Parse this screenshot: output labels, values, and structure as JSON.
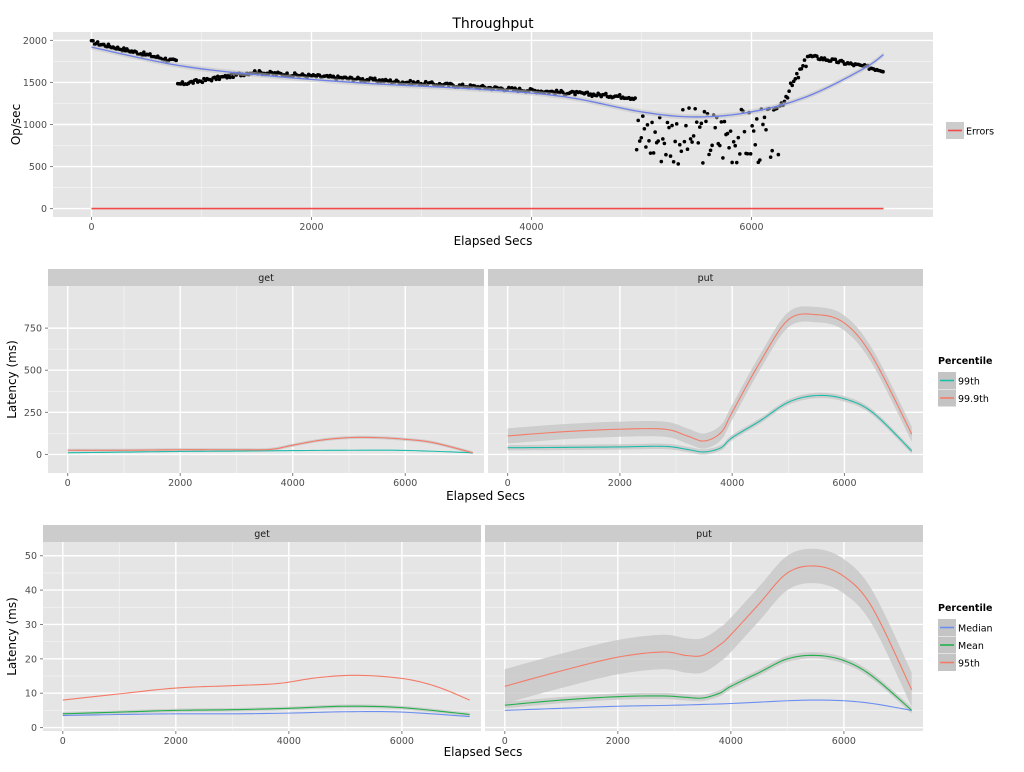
{
  "chart_data": [
    {
      "type": "scatter",
      "title": "Throughput",
      "xlabel": "Elapsed Secs",
      "ylabel": "Op/sec",
      "xlim": [
        -350,
        7650
      ],
      "ylim": [
        -100,
        2100
      ],
      "x_ticks": [
        0,
        2000,
        4000,
        6000
      ],
      "y_ticks": [
        0,
        500,
        1000,
        1500,
        2000
      ],
      "grid": true,
      "legend": {
        "position": "right",
        "entries": [
          "Errors"
        ]
      },
      "smooth": [
        [
          0,
          1920
        ],
        [
          800,
          1700
        ],
        [
          1600,
          1580
        ],
        [
          2500,
          1490
        ],
        [
          3500,
          1420
        ],
        [
          4300,
          1330
        ],
        [
          5000,
          1150
        ],
        [
          5500,
          1090
        ],
        [
          6000,
          1150
        ],
        [
          6500,
          1330
        ],
        [
          7000,
          1650
        ],
        [
          7200,
          1830
        ]
      ],
      "errors": [
        [
          0,
          0
        ],
        [
          7200,
          0
        ]
      ]
    },
    {
      "type": "line",
      "xlabel": "Elapsed Secs",
      "ylabel": "Latency (ms)",
      "xlim": [
        -350,
        7400
      ],
      "ylim": [
        -110,
        1000
      ],
      "x_ticks": [
        0,
        2000,
        4000,
        6000
      ],
      "y_ticks": [
        0,
        250,
        500,
        750
      ],
      "grid": true,
      "legend": {
        "title": "Percentile",
        "position": "right",
        "entries": [
          "99th",
          "99.9th"
        ]
      },
      "panels": [
        {
          "name": "get",
          "series": [
            {
              "name": "99th",
              "x": [
                0,
                1000,
                2000,
                3000,
                4000,
                5000,
                6000,
                7200
              ],
              "values": [
                10,
                14,
                18,
                20,
                23,
                25,
                24,
                10
              ]
            },
            {
              "name": "99.9th",
              "x": [
                0,
                1000,
                2000,
                3000,
                3600,
                4000,
                4500,
                5000,
                5500,
                6000,
                6500,
                7200
              ],
              "values": [
                25,
                25,
                28,
                28,
                30,
                55,
                85,
                100,
                100,
                90,
                70,
                10
              ]
            }
          ]
        },
        {
          "name": "put",
          "series": [
            {
              "name": "99th",
              "x": [
                0,
                1000,
                2000,
                2800,
                3200,
                3500,
                3800,
                4000,
                4500,
                5000,
                5500,
                6000,
                6500,
                7200
              ],
              "values": [
                40,
                42,
                45,
                48,
                30,
                15,
                40,
                100,
                200,
                310,
                350,
                330,
                250,
                20
              ]
            },
            {
              "name": "99.9th",
              "x": [
                0,
                1000,
                2000,
                2800,
                3200,
                3500,
                3800,
                4000,
                4500,
                5000,
                5500,
                6000,
                6500,
                7200
              ],
              "values": [
                110,
                135,
                150,
                150,
                110,
                80,
                130,
                250,
                550,
                800,
                830,
                780,
                580,
                120
              ]
            }
          ]
        }
      ]
    },
    {
      "type": "line",
      "xlabel": "Elapsed Secs",
      "ylabel": "Latency (ms)",
      "xlim": [
        -350,
        7400
      ],
      "ylim": [
        -1,
        54
      ],
      "x_ticks": [
        0,
        2000,
        4000,
        6000
      ],
      "y_ticks": [
        0,
        10,
        20,
        30,
        40,
        50
      ],
      "grid": true,
      "legend": {
        "title": "Percentile",
        "position": "right",
        "entries": [
          "Median",
          "Mean",
          "95th"
        ]
      },
      "panels": [
        {
          "name": "get",
          "series": [
            {
              "name": "Median",
              "x": [
                0,
                1000,
                2000,
                3000,
                4000,
                5000,
                6000,
                7200
              ],
              "values": [
                3.5,
                3.8,
                4,
                4,
                4.2,
                4.6,
                4.5,
                3.2
              ]
            },
            {
              "name": "Mean",
              "x": [
                0,
                1000,
                2000,
                3000,
                4000,
                5000,
                6000,
                7200
              ],
              "values": [
                4,
                4.5,
                5,
                5.2,
                5.6,
                6.2,
                5.8,
                3.8
              ]
            },
            {
              "name": "95th",
              "x": [
                0,
                1000,
                2000,
                3000,
                3800,
                4500,
                5200,
                6000,
                6600,
                7200
              ],
              "values": [
                8,
                9.8,
                11.5,
                12.2,
                12.8,
                14.5,
                15.2,
                14.3,
                12,
                8
              ]
            }
          ]
        },
        {
          "name": "put",
          "series": [
            {
              "name": "Median",
              "x": [
                0,
                1000,
                2000,
                3000,
                4000,
                5000,
                5500,
                6000,
                6500,
                7200
              ],
              "values": [
                5,
                5.6,
                6.2,
                6.5,
                7,
                7.8,
                8,
                7.8,
                7,
                5
              ]
            },
            {
              "name": "Mean",
              "x": [
                0,
                1000,
                2000,
                2800,
                3200,
                3500,
                3800,
                4000,
                4500,
                5000,
                5500,
                6000,
                6500,
                7200
              ],
              "values": [
                6.5,
                8,
                9,
                9.2,
                8.8,
                8.6,
                10,
                12,
                16,
                20,
                21,
                19.5,
                15,
                5
              ]
            },
            {
              "name": "95th",
              "x": [
                0,
                1000,
                2000,
                2800,
                3200,
                3500,
                3800,
                4000,
                4500,
                5000,
                5500,
                6000,
                6500,
                7200
              ],
              "values": [
                12,
                16.5,
                20.5,
                22,
                21,
                21,
                24,
                27,
                36,
                45,
                47,
                44,
                35,
                11
              ]
            }
          ]
        }
      ]
    }
  ],
  "colors": {
    "panel_bg": "#e5e5e5",
    "strip_bg": "#cccccc",
    "grid_major": "#ffffff",
    "grid_minor": "#f2f2f2",
    "ribbon": "#c4c4c4",
    "smooth": "#6d7fe8",
    "errors": "#f04a4a",
    "p99": "#1fbcaa",
    "p999": "#f37b68",
    "median": "#6c8ef0",
    "mean": "#21b04b",
    "p95": "#f37b68",
    "points": "#000000"
  }
}
